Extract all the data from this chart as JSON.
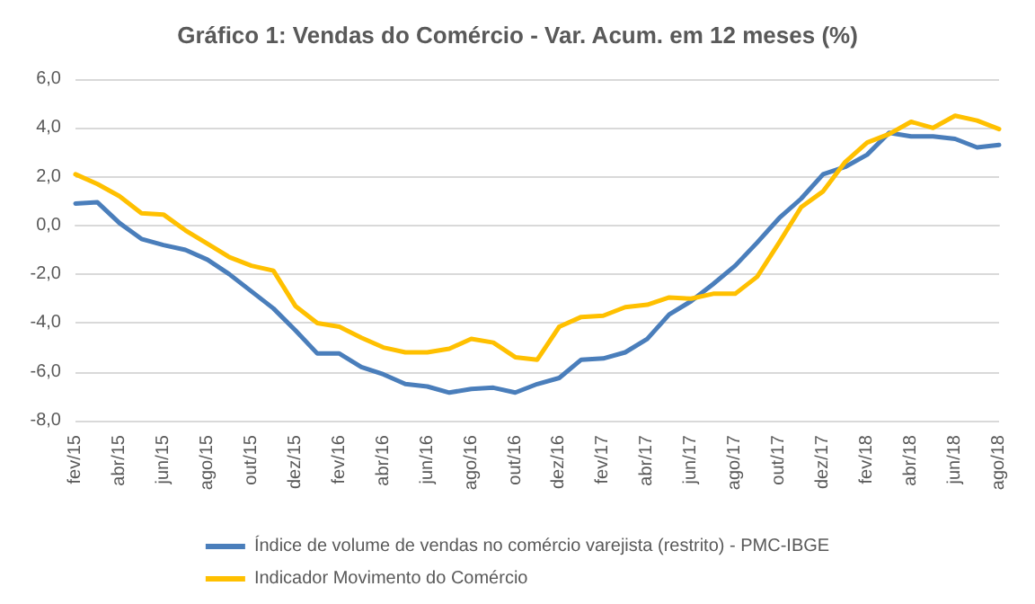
{
  "chart_data": {
    "type": "line",
    "title": "Gráfico 1: Vendas do Comércio - Var. Acum. em 12 meses (%)",
    "categories": [
      "fev/15",
      null,
      "abr/15",
      null,
      "jun/15",
      null,
      "ago/15",
      null,
      "out/15",
      null,
      "dez/15",
      null,
      "fev/16",
      null,
      "abr/16",
      null,
      "jun/16",
      null,
      "ago/16",
      null,
      "out/16",
      null,
      "dez/16",
      null,
      "fev/17",
      null,
      "abr/17",
      null,
      "jun/17",
      null,
      "ago/17",
      null,
      "out/17",
      null,
      "dez/17",
      null,
      "fev/18",
      null,
      "abr/18",
      null,
      "jun/18",
      null,
      "ago/18"
    ],
    "series": [
      {
        "name": "Índice de volume de vendas no comércio varejista (restrito) - PMC-IBGE",
        "color": "#4a7ebb",
        "values": [
          0.9,
          0.95,
          0.1,
          -0.55,
          -0.8,
          -1.0,
          -1.4,
          -2.0,
          -2.7,
          -3.4,
          -4.3,
          -5.25,
          -5.25,
          -5.8,
          -6.1,
          -6.5,
          -6.6,
          -6.85,
          -6.7,
          -6.65,
          -6.85,
          -6.5,
          -6.25,
          -5.5,
          -5.45,
          -5.2,
          -4.65,
          -3.65,
          -3.1,
          -2.4,
          -1.65,
          -0.7,
          0.3,
          1.1,
          2.1,
          2.4,
          2.9,
          3.8,
          3.65,
          3.65,
          3.55,
          3.2,
          3.3
        ]
      },
      {
        "name": "Indicador Movimento do Comércio",
        "color": "#ffc000",
        "values": [
          2.1,
          1.7,
          1.2,
          0.5,
          0.45,
          -0.2,
          -0.75,
          -1.3,
          -1.65,
          -1.85,
          -3.3,
          -4.0,
          -4.15,
          -4.6,
          -5.0,
          -5.2,
          -5.2,
          -5.05,
          -4.65,
          -4.8,
          -5.4,
          -5.5,
          -4.15,
          -3.75,
          -3.7,
          -3.35,
          -3.25,
          -2.95,
          -3.0,
          -2.8,
          -2.8,
          -2.1,
          -0.7,
          0.75,
          1.4,
          2.6,
          3.4,
          3.75,
          4.25,
          4.0,
          4.5,
          4.3,
          3.95
        ]
      }
    ],
    "ylim": [
      -8,
      6
    ],
    "yticks": [
      {
        "value": -8,
        "label": "-8,0"
      },
      {
        "value": -6,
        "label": "-6,0"
      },
      {
        "value": -4,
        "label": "-4,0"
      },
      {
        "value": -2,
        "label": "-2,0"
      },
      {
        "value": 0,
        "label": "0,0"
      },
      {
        "value": 2,
        "label": "2,0"
      },
      {
        "value": 4,
        "label": "4,0"
      },
      {
        "value": 6,
        "label": "6,0"
      }
    ],
    "grid": "y",
    "legend": "bottom",
    "marker": "none",
    "line_style": "solid"
  }
}
